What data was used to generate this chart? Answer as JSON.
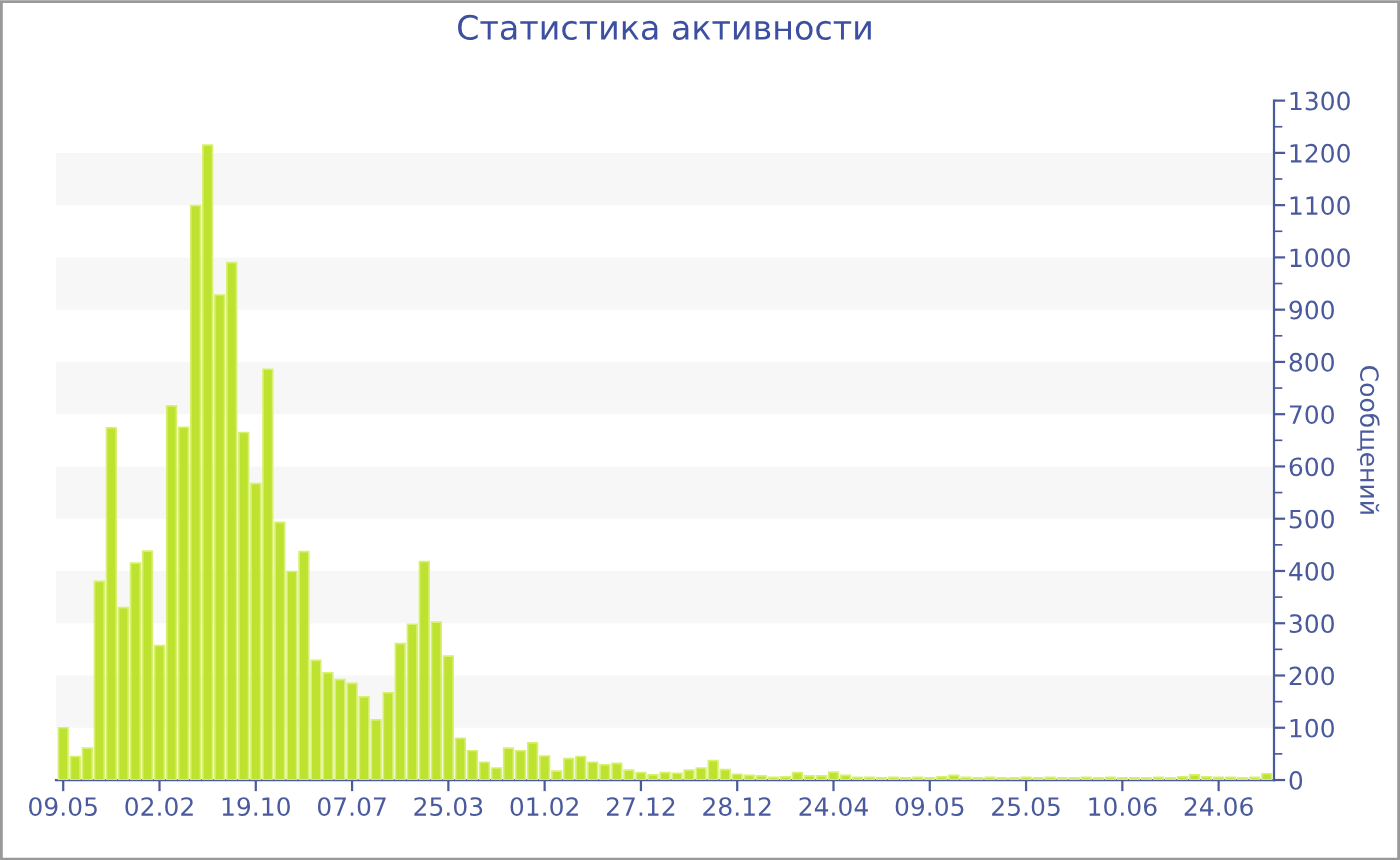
{
  "chart_data": {
    "type": "bar",
    "title": "Статистика активности",
    "ylabel": "Сообщений",
    "categories": [
      "09.05",
      null,
      null,
      null,
      null,
      null,
      null,
      null,
      "02.02",
      null,
      null,
      null,
      null,
      null,
      null,
      null,
      "19.10",
      null,
      null,
      null,
      null,
      null,
      null,
      null,
      "07.07",
      null,
      null,
      null,
      null,
      null,
      null,
      null,
      "25.03",
      null,
      null,
      null,
      null,
      null,
      null,
      null,
      "01.02",
      null,
      null,
      null,
      null,
      null,
      null,
      null,
      "27.12",
      null,
      null,
      null,
      null,
      null,
      null,
      null,
      "28.12",
      null,
      null,
      null,
      null,
      null,
      null,
      null,
      "24.04",
      null,
      null,
      null,
      null,
      null,
      null,
      null,
      "09.05",
      null,
      null,
      null,
      null,
      null,
      null,
      null,
      "25.05",
      null,
      null,
      null,
      null,
      null,
      null,
      null,
      "10.06",
      null,
      null,
      null,
      null,
      null,
      null,
      null,
      "24.06",
      null,
      null,
      null,
      null
    ],
    "values": [
      100,
      45,
      61,
      380,
      674,
      330,
      415,
      438,
      257,
      716,
      675,
      1099,
      1215,
      928,
      990,
      665,
      567,
      786,
      493,
      399,
      437,
      229,
      205,
      192,
      185,
      159,
      115,
      167,
      261,
      298,
      418,
      302,
      237,
      80,
      56,
      34,
      23,
      61,
      56,
      71,
      46,
      17,
      41,
      45,
      34,
      29,
      32,
      19,
      14,
      10,
      14,
      13,
      19,
      23,
      37,
      20,
      11,
      9,
      8,
      5,
      6,
      14,
      8,
      8,
      15,
      9,
      5,
      5,
      4,
      5,
      4,
      5,
      4,
      6,
      9,
      5,
      4,
      5,
      4,
      4,
      5,
      4,
      5,
      4,
      4,
      5,
      4,
      5,
      4,
      4,
      4,
      5,
      4,
      6,
      10,
      6,
      5,
      5,
      4,
      5,
      12
    ],
    "color": "#bde330",
    "ylim": [
      0,
      1300
    ],
    "yticks": [
      0,
      100,
      200,
      300,
      400,
      500,
      600,
      700,
      800,
      900,
      1000,
      1100,
      1200,
      1300
    ],
    "bands": [
      {
        "axis": "y",
        "from": 100,
        "to": 200,
        "color": "#f7f7f7"
      },
      {
        "axis": "y",
        "from": 300,
        "to": 400,
        "color": "#f7f7f7"
      },
      {
        "axis": "y",
        "from": 500,
        "to": 600,
        "color": "#f7f7f7"
      },
      {
        "axis": "y",
        "from": 700,
        "to": 800,
        "color": "#f7f7f7"
      },
      {
        "axis": "y",
        "from": 900,
        "to": 1000,
        "color": "#f7f7f7"
      },
      {
        "axis": "y",
        "from": 1100,
        "to": 1200,
        "color": "#f7f7f7"
      }
    ],
    "legend": false
  }
}
